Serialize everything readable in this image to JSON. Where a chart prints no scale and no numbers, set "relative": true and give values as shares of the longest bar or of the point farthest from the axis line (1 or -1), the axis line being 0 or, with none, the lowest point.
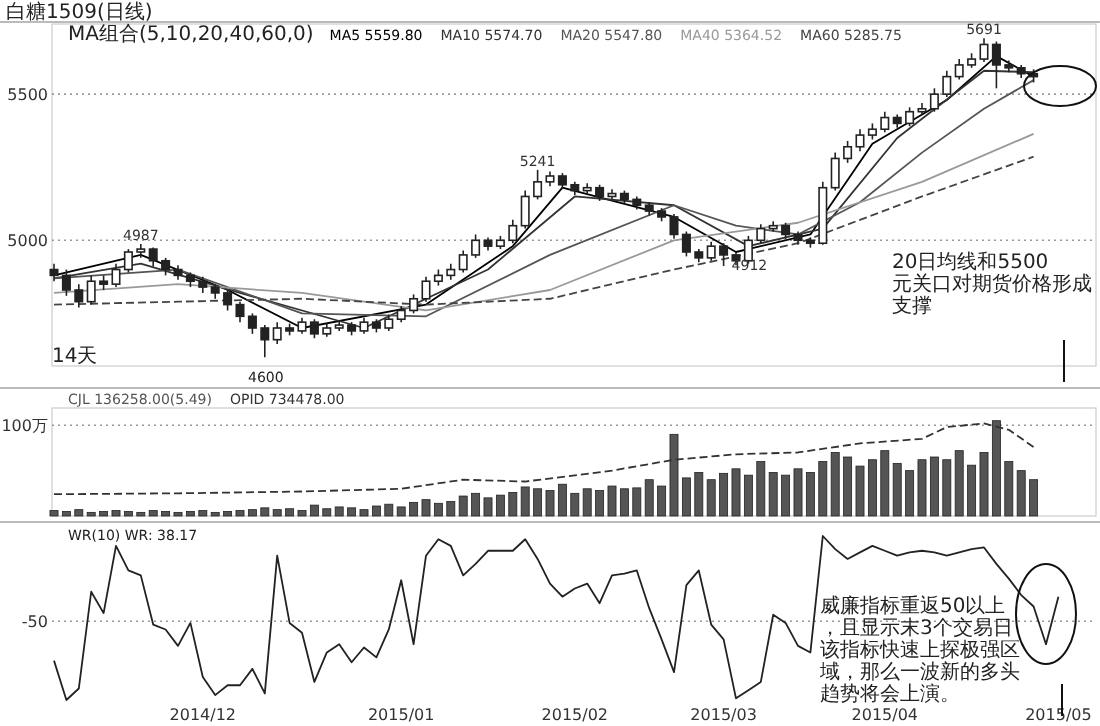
{
  "chart_data": [
    {
      "type": "candlestick",
      "title": "白糖1509(日线)",
      "legend_title": "MA组合(5,10,20,40,60,0)",
      "color": "#222222",
      "legend": "top",
      "grid": "y",
      "tick_labels": "y",
      "categories": [
        null,
        null,
        null,
        null,
        null,
        null,
        null,
        null,
        null,
        null,
        null,
        null,
        null,
        null,
        null,
        null,
        null,
        null,
        null,
        null,
        null,
        null,
        null,
        null,
        null,
        null,
        null,
        null,
        null,
        null,
        null,
        null,
        null,
        null,
        null,
        null,
        null,
        null,
        null,
        null,
        null,
        null,
        null,
        null,
        null,
        null,
        null,
        null,
        null,
        null,
        null,
        null,
        null,
        null,
        null,
        null,
        null,
        null,
        null,
        null,
        null,
        null,
        null,
        null,
        null,
        null,
        null,
        null,
        null,
        null,
        null,
        null,
        null,
        null,
        null,
        null,
        null,
        null,
        null,
        null
      ],
      "ohlc": [
        [
          4900,
          4920,
          4860,
          4880
        ],
        [
          4880,
          4900,
          4810,
          4830
        ],
        [
          4830,
          4850,
          4770,
          4790
        ],
        [
          4790,
          4880,
          4780,
          4860
        ],
        [
          4860,
          4880,
          4830,
          4850
        ],
        [
          4850,
          4920,
          4840,
          4900
        ],
        [
          4900,
          4970,
          4890,
          4960
        ],
        [
          4960,
          4987,
          4940,
          4970
        ],
        [
          4970,
          4975,
          4910,
          4930
        ],
        [
          4930,
          4940,
          4880,
          4900
        ],
        [
          4900,
          4915,
          4865,
          4880
        ],
        [
          4880,
          4890,
          4840,
          4860
        ],
        [
          4860,
          4875,
          4820,
          4840
        ],
        [
          4840,
          4850,
          4800,
          4820
        ],
        [
          4820,
          4830,
          4760,
          4780
        ],
        [
          4780,
          4790,
          4720,
          4740
        ],
        [
          4740,
          4750,
          4680,
          4700
        ],
        [
          4700,
          4710,
          4600,
          4660
        ],
        [
          4660,
          4720,
          4645,
          4700
        ],
        [
          4700,
          4715,
          4675,
          4690
        ],
        [
          4690,
          4735,
          4680,
          4720
        ],
        [
          4720,
          4730,
          4665,
          4680
        ],
        [
          4680,
          4715,
          4670,
          4700
        ],
        [
          4700,
          4725,
          4690,
          4710
        ],
        [
          4710,
          4720,
          4675,
          4690
        ],
        [
          4690,
          4735,
          4680,
          4720
        ],
        [
          4720,
          4730,
          4685,
          4700
        ],
        [
          4700,
          4745,
          4690,
          4730
        ],
        [
          4730,
          4775,
          4720,
          4760
        ],
        [
          4760,
          4815,
          4750,
          4800
        ],
        [
          4800,
          4875,
          4790,
          4860
        ],
        [
          4860,
          4900,
          4845,
          4880
        ],
        [
          4880,
          4920,
          4865,
          4900
        ],
        [
          4900,
          4965,
          4890,
          4950
        ],
        [
          4950,
          5020,
          4940,
          5000
        ],
        [
          5000,
          5010,
          4965,
          4980
        ],
        [
          4980,
          5015,
          4970,
          5000
        ],
        [
          5000,
          5070,
          4990,
          5050
        ],
        [
          5050,
          5170,
          5040,
          5150
        ],
        [
          5150,
          5241,
          5140,
          5200
        ],
        [
          5200,
          5235,
          5185,
          5220
        ],
        [
          5220,
          5230,
          5175,
          5190
        ],
        [
          5190,
          5200,
          5155,
          5170
        ],
        [
          5170,
          5195,
          5160,
          5180
        ],
        [
          5180,
          5190,
          5135,
          5150
        ],
        [
          5150,
          5175,
          5140,
          5160
        ],
        [
          5160,
          5170,
          5125,
          5140
        ],
        [
          5140,
          5150,
          5105,
          5120
        ],
        [
          5120,
          5130,
          5085,
          5100
        ],
        [
          5100,
          5110,
          5065,
          5080
        ],
        [
          5080,
          5090,
          5005,
          5020
        ],
        [
          5020,
          5030,
          4945,
          4960
        ],
        [
          4960,
          4970,
          4925,
          4940
        ],
        [
          4940,
          4995,
          4930,
          4980
        ],
        [
          4980,
          4990,
          4912,
          4950
        ],
        [
          4950,
          4960,
          4915,
          4930
        ],
        [
          4930,
          5015,
          4920,
          5000
        ],
        [
          5000,
          5055,
          4990,
          5040
        ],
        [
          5040,
          5065,
          5030,
          5050
        ],
        [
          5050,
          5060,
          5005,
          5020
        ],
        [
          5020,
          5030,
          4985,
          5000
        ],
        [
          5000,
          5010,
          4975,
          4990
        ],
        [
          4990,
          5200,
          4985,
          5180
        ],
        [
          5180,
          5300,
          5170,
          5280
        ],
        [
          5280,
          5340,
          5265,
          5320
        ],
        [
          5320,
          5380,
          5305,
          5360
        ],
        [
          5360,
          5400,
          5345,
          5380
        ],
        [
          5380,
          5440,
          5370,
          5420
        ],
        [
          5420,
          5430,
          5385,
          5400
        ],
        [
          5400,
          5455,
          5390,
          5440
        ],
        [
          5440,
          5470,
          5430,
          5450
        ],
        [
          5450,
          5520,
          5440,
          5500
        ],
        [
          5500,
          5580,
          5490,
          5560
        ],
        [
          5560,
          5620,
          5550,
          5600
        ],
        [
          5600,
          5640,
          5590,
          5620
        ],
        [
          5620,
          5691,
          5610,
          5670
        ],
        [
          5670,
          5680,
          5520,
          5600
        ],
        [
          5600,
          5615,
          5575,
          5590
        ],
        [
          5590,
          5600,
          5555,
          5570
        ],
        [
          5570,
          5585,
          5540,
          5560
        ]
      ],
      "series": [
        {
          "name": "MA5 5559.80",
          "type": "line",
          "color": "#000000",
          "values": [
            4880,
            null,
            null,
            null,
            null,
            null,
            null,
            4950,
            null,
            null,
            null,
            null,
            null,
            null,
            4830,
            null,
            null,
            null,
            null,
            null,
            4700,
            null,
            null,
            null,
            null,
            null,
            null,
            null,
            null,
            null,
            4780,
            null,
            null,
            null,
            null,
            null,
            null,
            4980,
            null,
            null,
            null,
            5180,
            null,
            null,
            null,
            null,
            null,
            null,
            null,
            null,
            5080,
            null,
            null,
            null,
            null,
            4960,
            null,
            null,
            null,
            null,
            null,
            5020,
            null,
            null,
            null,
            null,
            5330,
            null,
            null,
            null,
            null,
            null,
            5480,
            null,
            null,
            null,
            5630,
            null,
            null,
            5560
          ]
        },
        {
          "name": "MA10 5574.70",
          "type": "line",
          "color": "#333333",
          "values": [
            4870,
            null,
            null,
            null,
            null,
            null,
            null,
            4920,
            null,
            null,
            null,
            null,
            null,
            null,
            null,
            4820,
            null,
            null,
            null,
            null,
            null,
            null,
            null,
            null,
            null,
            4700,
            null,
            null,
            null,
            null,
            null,
            null,
            null,
            null,
            null,
            4900,
            null,
            null,
            null,
            null,
            null,
            null,
            5150,
            null,
            null,
            null,
            null,
            null,
            null,
            null,
            5120,
            null,
            null,
            null,
            null,
            null,
            4980,
            null,
            null,
            null,
            null,
            null,
            5040,
            null,
            null,
            null,
            null,
            null,
            5350,
            null,
            null,
            null,
            null,
            null,
            null,
            5580,
            null,
            null,
            null,
            5575
          ]
        },
        {
          "name": "MA20 5547.80",
          "type": "line",
          "color": "#555555",
          "values": [
            4870,
            null,
            null,
            null,
            null,
            null,
            null,
            null,
            null,
            null,
            4900,
            null,
            null,
            null,
            null,
            null,
            null,
            null,
            null,
            null,
            4750,
            null,
            null,
            null,
            null,
            null,
            null,
            null,
            null,
            null,
            4740,
            null,
            null,
            null,
            null,
            null,
            null,
            null,
            null,
            null,
            4950,
            null,
            null,
            null,
            null,
            null,
            null,
            null,
            null,
            null,
            5120,
            null,
            null,
            null,
            null,
            5050,
            null,
            null,
            null,
            null,
            5020,
            null,
            null,
            null,
            null,
            5130,
            null,
            null,
            null,
            null,
            5300,
            null,
            null,
            null,
            null,
            5450,
            null,
            null,
            null,
            5548
          ]
        },
        {
          "name": "MA40 5364.52",
          "type": "line",
          "color": "#999999",
          "values": [
            4820,
            null,
            null,
            null,
            null,
            null,
            null,
            null,
            null,
            null,
            4850,
            null,
            null,
            null,
            null,
            null,
            null,
            null,
            null,
            null,
            4820,
            null,
            null,
            null,
            null,
            null,
            null,
            null,
            null,
            null,
            4760,
            null,
            null,
            null,
            null,
            null,
            null,
            null,
            null,
            null,
            4830,
            null,
            null,
            null,
            null,
            null,
            null,
            null,
            null,
            null,
            5000,
            null,
            null,
            null,
            null,
            null,
            null,
            null,
            null,
            null,
            5060,
            null,
            null,
            null,
            null,
            null,
            null,
            null,
            null,
            null,
            5200,
            null,
            null,
            null,
            null,
            null,
            null,
            null,
            null,
            5364
          ]
        },
        {
          "name": "MA60 5285.75",
          "type": "line",
          "color": "#444444",
          "line_style": "dashed",
          "values": [
            4780,
            null,
            null,
            null,
            null,
            null,
            null,
            null,
            null,
            null,
            4790,
            null,
            null,
            null,
            null,
            null,
            null,
            null,
            null,
            null,
            4800,
            null,
            null,
            null,
            null,
            null,
            null,
            null,
            null,
            null,
            4780,
            null,
            null,
            null,
            null,
            null,
            null,
            null,
            null,
            null,
            4800,
            null,
            null,
            null,
            null,
            null,
            null,
            null,
            null,
            null,
            4900,
            null,
            null,
            null,
            null,
            null,
            null,
            null,
            null,
            null,
            4990,
            null,
            null,
            null,
            null,
            null,
            null,
            null,
            null,
            null,
            5150,
            null,
            null,
            null,
            null,
            null,
            null,
            null,
            null,
            5286
          ]
        }
      ],
      "ylim": [
        4570,
        5740
      ],
      "yticks": [
        5000,
        5500
      ],
      "annotations": [
        {
          "text": "4987",
          "y": 4987
        },
        "4600",
        {
          "text": "5241",
          "y": 5241
        },
        {
          "text": "4912",
          "y": 4912
        },
        {
          "text": "5691",
          "y": 5691
        },
        "14天",
        "20日均线和5500元关口对期货价格形成支撑"
      ]
    },
    {
      "type": "bar",
      "legend": "top left",
      "grid": "y",
      "tick_labels": "y",
      "categories": [
        null,
        null,
        null,
        null,
        null,
        null,
        null,
        null,
        null,
        null,
        null,
        null,
        null,
        null,
        null,
        null,
        null,
        null,
        null,
        null,
        null,
        null,
        null,
        null,
        null,
        null,
        null,
        null,
        null,
        null,
        null,
        null,
        null,
        null,
        null,
        null,
        null,
        null,
        null,
        null,
        null,
        null,
        null,
        null,
        null,
        null,
        null,
        null,
        null,
        null,
        null,
        null,
        null,
        null,
        null,
        null,
        null,
        null,
        null,
        null,
        null,
        null,
        null,
        null,
        null,
        null,
        null,
        null,
        null,
        null,
        null,
        null,
        null,
        null,
        null,
        null,
        null,
        null,
        null,
        null
      ],
      "series": [
        {
          "name": "CJL 136258.00(5.49)",
          "color": "#555555",
          "values": [
            6,
            5,
            7,
            4,
            5,
            6,
            5,
            4,
            6,
            5,
            4,
            5,
            6,
            4,
            5,
            6,
            7,
            9,
            7,
            8,
            6,
            12,
            8,
            10,
            9,
            7,
            11,
            13,
            10,
            15,
            18,
            14,
            16,
            22,
            25,
            20,
            23,
            26,
            32,
            30,
            28,
            35,
            25,
            30,
            28,
            33,
            30,
            31,
            40,
            33,
            90,
            42,
            48,
            40,
            47,
            52,
            45,
            60,
            48,
            45,
            52,
            48,
            60,
            70,
            65,
            55,
            62,
            72,
            58,
            50,
            62,
            65,
            62,
            72,
            56,
            70,
            105,
            60,
            50,
            40
          ]
        },
        {
          "name": "OPID 734478.00",
          "type": "line",
          "color": "#333333",
          "line_style": "dashed",
          "values": [
            24,
            null,
            null,
            null,
            null,
            null,
            null,
            null,
            null,
            null,
            25,
            null,
            null,
            null,
            null,
            null,
            null,
            null,
            null,
            null,
            27,
            null,
            null,
            null,
            null,
            null,
            null,
            null,
            30,
            null,
            null,
            null,
            null,
            40,
            null,
            null,
            null,
            null,
            38,
            null,
            null,
            null,
            null,
            null,
            null,
            50,
            null,
            null,
            null,
            null,
            62,
            null,
            null,
            null,
            null,
            68,
            null,
            null,
            null,
            null,
            70,
            null,
            null,
            null,
            null,
            80,
            null,
            null,
            null,
            null,
            85,
            null,
            98,
            null,
            null,
            102,
            null,
            95,
            null,
            76
          ]
        }
      ],
      "ylim": [
        0,
        119
      ],
      "yticks": [
        {
          "value": 100,
          "label": "100万"
        }
      ]
    },
    {
      "type": "line",
      "relative": true,
      "categories": [
        null,
        null,
        null,
        null,
        null,
        null,
        null,
        null,
        null,
        null,
        null,
        null,
        "2014/12",
        null,
        null,
        null,
        null,
        null,
        null,
        null,
        null,
        null,
        null,
        null,
        null,
        null,
        null,
        null,
        "2015/01",
        null,
        null,
        null,
        null,
        null,
        null,
        null,
        null,
        null,
        null,
        null,
        null,
        null,
        "2015/02",
        null,
        null,
        null,
        null,
        null,
        null,
        null,
        null,
        null,
        null,
        null,
        "2015/03",
        null,
        null,
        null,
        null,
        null,
        null,
        null,
        null,
        null,
        null,
        null,
        null,
        "2015/04",
        null,
        null,
        null,
        null,
        null,
        null,
        null,
        null,
        null,
        null,
        null,
        null,
        null,
        "2015/05"
      ],
      "series": [
        {
          "name": "WR(10) WR: 38.17",
          "color": "#222222",
          "values": [
            0.24,
            0,
            0.07,
            0.66,
            0.53,
            0.94,
            0.79,
            0.76,
            0.46,
            0.43,
            0.33,
            0.47,
            0.14,
            0.03,
            0.09,
            0.09,
            0.19,
            0.04,
            0.88,
            0.47,
            0.41,
            0.11,
            0.29,
            0.34,
            0.23,
            0.32,
            0.26,
            0.43,
            0.73,
            0.34,
            0.88,
            0.98,
            0.94,
            0.76,
            0.83,
            0.91,
            0.91,
            0.91,
            0.98,
            0.86,
            0.71,
            0.63,
            0.68,
            0.71,
            0.59,
            0.76,
            0.77,
            0.79,
            0.56,
            0.37,
            0.17,
            0.7,
            0.79,
            0.46,
            0.37,
            0.01,
            0.06,
            0.11,
            0.52,
            0.47,
            0.33,
            0.29,
            1,
            0.92,
            0.86,
            0.9,
            0.94,
            0.91,
            0.88,
            0.9,
            0.91,
            0.9,
            0.88,
            0.9,
            0.92,
            0.93,
            0.83,
            0.74,
            0.64,
            0.57,
            0.34,
            0.63
          ]
        }
      ],
      "legend": "top left",
      "ref_lines": [
        {
          "axis": "y",
          "value": 0.48,
          "line_style": "dotted",
          "color": "#999999"
        }
      ],
      "annotations": [
        "-50",
        "威廉指标重返50以上，且显示末3个交易日该指标快速上探极强区域，那么一波新的多头趋势将会上演。"
      ]
    }
  ]
}
